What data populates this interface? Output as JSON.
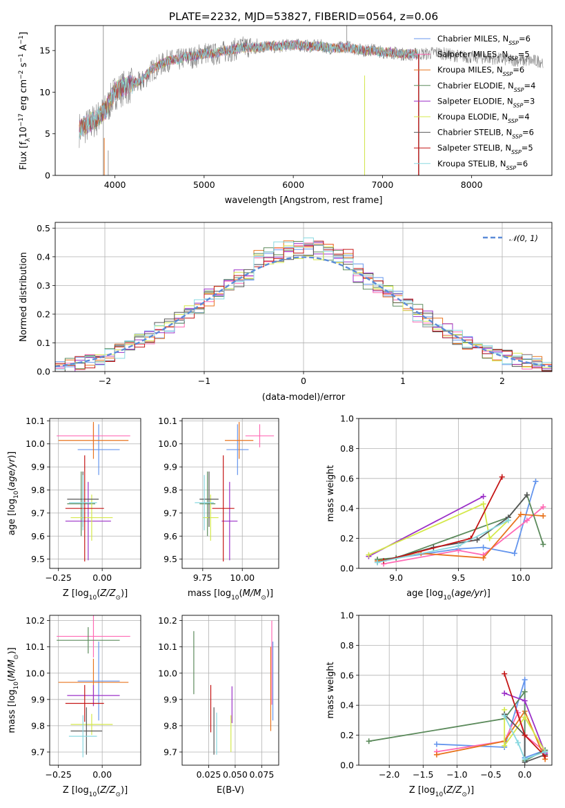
{
  "figure_title": "PLATE=2232, MJD=53827, FIBERID=0564, z=0.06",
  "models": [
    {
      "name": "Chabrier MILES",
      "nssp": "6",
      "color": "#6495ed"
    },
    {
      "name": "Salpeter MILES",
      "nssp": "5",
      "color": "#ff69b4"
    },
    {
      "name": "Kroupa MILES",
      "nssp": "6",
      "color": "#e8731c"
    },
    {
      "name": "Chabrier ELODIE",
      "nssp": "4",
      "color": "#5b8a5b"
    },
    {
      "name": "Salpeter ELODIE",
      "nssp": "3",
      "color": "#9b30c8"
    },
    {
      "name": "Kroupa ELODIE",
      "nssp": "4",
      "color": "#d4e84a"
    },
    {
      "name": "Chabrier STELIB",
      "nssp": "6",
      "color": "#555555"
    },
    {
      "name": "Salpeter STELIB",
      "nssp": "5",
      "color": "#c41414"
    },
    {
      "name": "Kroupa STELIB",
      "nssp": "6",
      "color": "#88d8e0"
    }
  ],
  "legend_suffix": "N",
  "legend_sub": "SSP",
  "data_color": "#808080",
  "chart_data": [
    {
      "id": "spectrum",
      "type": "line",
      "xlabel": "wavelength [Angstrom, rest frame]",
      "ylabel": "Flux [f_λ 10^-17 erg cm^-2 s^-1 A^-1]",
      "xlim": [
        3330,
        8900
      ],
      "ylim": [
        0,
        18
      ],
      "xticks": [
        4000,
        5000,
        6000,
        7000,
        8000
      ],
      "yticks": [
        0,
        5,
        10,
        15
      ],
      "data_wavelength": [
        3600,
        3700,
        3800,
        3900,
        4000,
        4100,
        4200,
        4300,
        4400,
        4500,
        4600,
        4700,
        4800,
        4900,
        5000,
        5100,
        5200,
        5300,
        5400,
        5500,
        5600,
        5700,
        5800,
        5900,
        6000,
        6100,
        6200,
        6300,
        6400,
        6500,
        6600,
        6700,
        6800,
        6900,
        7000,
        7100,
        7200,
        7300,
        7400,
        7500,
        7600,
        7700,
        7800,
        8000,
        8200,
        8400,
        8600,
        8800
      ],
      "data_flux": [
        5.5,
        6.0,
        6.8,
        7.8,
        10.0,
        10.5,
        10.8,
        11.2,
        12.5,
        13.2,
        13.8,
        13.8,
        14.2,
        14.2,
        14.8,
        14.5,
        14.8,
        15.0,
        15.3,
        15.5,
        15.2,
        15.6,
        15.4,
        15.6,
        15.7,
        15.6,
        15.5,
        15.6,
        15.3,
        15.3,
        15.5,
        15.2,
        15.0,
        15.1,
        14.8,
        14.8,
        14.6,
        14.5,
        14.6,
        14.6,
        14.8,
        14.6,
        14.4,
        14.2,
        14.1,
        13.9,
        13.8,
        13.7
      ],
      "model_wavelength": [
        3600,
        3700,
        3800,
        3900,
        4000,
        4100,
        4200,
        4300,
        4400,
        4500,
        4600,
        4700,
        4800,
        4900,
        5000,
        5100,
        5200,
        5300,
        5400,
        5500,
        5600,
        5700,
        5800,
        5900,
        6000,
        6100,
        6200,
        6300,
        6400,
        6500,
        6600,
        6700,
        6800,
        6900,
        7000,
        7100,
        7200,
        7300,
        7400
      ],
      "model_flux": [
        5.6,
        6.2,
        6.9,
        8.0,
        10.2,
        10.6,
        11.0,
        11.5,
        12.6,
        13.3,
        13.8,
        13.9,
        14.3,
        14.3,
        14.7,
        14.6,
        14.9,
        15.1,
        15.3,
        15.4,
        15.3,
        15.6,
        15.5,
        15.6,
        15.7,
        15.6,
        15.5,
        15.5,
        15.3,
        15.3,
        15.4,
        15.2,
        15.0,
        15.0,
        14.8,
        14.8,
        14.6,
        14.6,
        14.6
      ]
    },
    {
      "id": "residuals",
      "type": "line",
      "xlabel": "(data-model)/error",
      "ylabel": "Normed distribution",
      "xlim": [
        -2.5,
        2.5
      ],
      "ylim": [
        0,
        0.52
      ],
      "xticks": [
        -2,
        -1,
        0,
        1,
        2
      ],
      "yticks": [
        0.0,
        0.1,
        0.2,
        0.3,
        0.4,
        0.5
      ],
      "legend": "𝒩(0, 1)",
      "gauss_color": "#5b8bd8"
    },
    {
      "id": "age-vs-Z",
      "type": "scatter",
      "xlabel": "Z [log10(Z/Z⊙)]",
      "ylabel": "age  [log10(age/yr)]",
      "xlim": [
        -0.3,
        0.22
      ],
      "ylim": [
        9.46,
        10.11
      ],
      "xticks": [
        -0.25,
        0.0
      ],
      "yticks": [
        9.5,
        9.6,
        9.7,
        9.8,
        9.9,
        10.0,
        10.1
      ],
      "points": [
        {
          "x": -0.02,
          "xerr": 0.12,
          "y": 9.975,
          "yerr": 0.11
        },
        {
          "x": -0.05,
          "xerr": 0.21,
          "y": 10.035,
          "yerr": 0.05
        },
        {
          "x": -0.05,
          "xerr": 0.2,
          "y": 10.015,
          "yerr": 0.08
        },
        {
          "x": -0.12,
          "xerr": 0.08,
          "y": 9.74,
          "yerr": 0.14
        },
        {
          "x": -0.08,
          "xerr": 0.13,
          "y": 9.665,
          "yerr": 0.17
        },
        {
          "x": -0.06,
          "xerr": 0.12,
          "y": 9.68,
          "yerr": 0.1
        },
        {
          "x": -0.11,
          "xerr": 0.09,
          "y": 9.76,
          "yerr": 0.12
        },
        {
          "x": -0.1,
          "xerr": 0.11,
          "y": 9.72,
          "yerr": 0.23
        },
        {
          "x": -0.11,
          "xerr": 0.08,
          "y": 9.745,
          "yerr": 0.12
        }
      ]
    },
    {
      "id": "age-vs-mass",
      "type": "scatter",
      "xlabel": "mass [log10(M/M⊙)]",
      "ylabel": "",
      "xlim": [
        9.62,
        10.23
      ],
      "ylim": [
        9.46,
        10.11
      ],
      "xticks": [
        9.75,
        10.0
      ],
      "yticks": [
        9.5,
        9.6,
        9.7,
        9.8,
        9.9,
        10.0,
        10.1
      ],
      "points": [
        {
          "x": 9.97,
          "xerr": 0.07,
          "y": 9.975,
          "yerr": 0.11
        },
        {
          "x": 10.11,
          "xerr": 0.09,
          "y": 10.035,
          "yerr": 0.05
        },
        {
          "x": 9.98,
          "xerr": 0.09,
          "y": 10.015,
          "yerr": 0.08
        },
        {
          "x": 9.78,
          "xerr": 0.05,
          "y": 9.74,
          "yerr": 0.14
        },
        {
          "x": 9.92,
          "xerr": 0.05,
          "y": 9.665,
          "yerr": 0.17
        },
        {
          "x": 9.8,
          "xerr": 0.05,
          "y": 9.68,
          "yerr": 0.1
        },
        {
          "x": 9.79,
          "xerr": 0.06,
          "y": 9.76,
          "yerr": 0.12
        },
        {
          "x": 9.88,
          "xerr": 0.07,
          "y": 9.72,
          "yerr": 0.23
        },
        {
          "x": 9.76,
          "xerr": 0.06,
          "y": 9.745,
          "yerr": 0.12
        }
      ]
    },
    {
      "id": "weight-vs-age",
      "type": "line",
      "xlabel": "age  [log10(age/yr)]",
      "ylabel": "mass weight",
      "xlim": [
        8.7,
        10.25
      ],
      "ylim": [
        0,
        1.0
      ],
      "xticks": [
        9.0,
        9.5,
        10.0
      ],
      "yticks": [
        0.0,
        0.2,
        0.4,
        0.6,
        0.8,
        1.0
      ],
      "series": [
        {
          "x": [
            8.85,
            9.5,
            9.7,
            9.95,
            10.12
          ],
          "y": [
            0.05,
            0.13,
            0.14,
            0.1,
            0.58
          ]
        },
        {
          "x": [
            8.9,
            9.5,
            9.7,
            10.05,
            10.18
          ],
          "y": [
            0.03,
            0.12,
            0.09,
            0.32,
            0.41
          ]
        },
        {
          "x": [
            8.85,
            9.2,
            9.7,
            10.0,
            10.18
          ],
          "y": [
            0.05,
            0.1,
            0.07,
            0.36,
            0.35
          ]
        },
        {
          "x": [
            8.85,
            9.0,
            9.9,
            10.05,
            10.18
          ],
          "y": [
            0.06,
            0.07,
            0.34,
            0.49,
            0.16
          ]
        },
        {
          "x": [
            8.78,
            9.7
          ],
          "y": [
            0.08,
            0.48
          ]
        },
        {
          "x": [
            8.78,
            9.7,
            9.75,
            9.9
          ],
          "y": [
            0.09,
            0.43,
            0.2,
            0.32
          ]
        },
        {
          "x": [
            8.85,
            9.3,
            9.65,
            9.9,
            10.05
          ],
          "y": [
            0.04,
            0.14,
            0.19,
            0.34,
            0.49
          ]
        },
        {
          "x": [
            8.9,
            9.6,
            9.85
          ],
          "y": [
            0.05,
            0.2,
            0.61
          ]
        },
        {
          "x": [
            8.85,
            9.5,
            9.9
          ],
          "y": [
            0.04,
            0.15,
            0.32
          ]
        }
      ]
    },
    {
      "id": "mass-vs-Z",
      "type": "scatter",
      "xlabel": "Z [log10(Z/Z⊙)]",
      "ylabel": "mass [log10(M/M⊙)]",
      "xlim": [
        -0.3,
        0.22
      ],
      "ylim": [
        9.65,
        10.22
      ],
      "xticks": [
        -0.25,
        0.0
      ],
      "yticks": [
        9.7,
        9.8,
        9.9,
        10.0,
        10.1,
        10.2
      ],
      "points": [
        {
          "x": -0.02,
          "xerr": 0.12,
          "y": 9.97,
          "yerr": 0.15
        },
        {
          "x": -0.05,
          "xerr": 0.21,
          "y": 10.14,
          "yerr": 0.08
        },
        {
          "x": -0.05,
          "xerr": 0.2,
          "y": 9.965,
          "yerr": 0.09
        },
        {
          "x": -0.08,
          "xerr": 0.18,
          "y": 10.125,
          "yerr": 0.05
        },
        {
          "x": -0.05,
          "xerr": 0.15,
          "y": 9.915,
          "yerr": 0.04
        },
        {
          "x": -0.06,
          "xerr": 0.12,
          "y": 9.805,
          "yerr": 0.04
        },
        {
          "x": -0.09,
          "xerr": 0.09,
          "y": 9.78,
          "yerr": 0.09
        },
        {
          "x": -0.1,
          "xerr": 0.11,
          "y": 9.885,
          "yerr": 0.07
        },
        {
          "x": -0.11,
          "xerr": 0.08,
          "y": 9.76,
          "yerr": 0.08
        }
      ]
    },
    {
      "id": "mass-vs-EBV",
      "type": "scatter",
      "xlabel": "E(B-V)",
      "ylabel": "",
      "xlim": [
        0.0,
        0.091
      ],
      "ylim": [
        9.65,
        10.22
      ],
      "xticks": [
        0.025,
        0.05,
        0.075
      ],
      "yticks": [
        9.7,
        9.8,
        9.9,
        10.0,
        10.1,
        10.2
      ],
      "points": [
        {
          "x": 0.0855,
          "xerr": 0.0,
          "y": 9.97,
          "yerr": 0.15
        },
        {
          "x": 0.0845,
          "xerr": 0.0,
          "y": 10.04,
          "yerr": 0.16
        },
        {
          "x": 0.0835,
          "xerr": 0.0,
          "y": 9.94,
          "yerr": 0.16
        },
        {
          "x": 0.011,
          "xerr": 0.0,
          "y": 10.04,
          "yerr": 0.12
        },
        {
          "x": 0.047,
          "xerr": 0.0,
          "y": 9.88,
          "yerr": 0.07
        },
        {
          "x": 0.046,
          "xerr": 0.0,
          "y": 9.77,
          "yerr": 0.07
        },
        {
          "x": 0.03,
          "xerr": 0.0,
          "y": 9.78,
          "yerr": 0.09
        },
        {
          "x": 0.027,
          "xerr": 0.0,
          "y": 9.865,
          "yerr": 0.09
        },
        {
          "x": 0.0325,
          "xerr": 0.0,
          "y": 9.77,
          "yerr": 0.08
        }
      ]
    },
    {
      "id": "weight-vs-Z",
      "type": "line",
      "xlabel": "Z [log10(Z/Z⊙)]",
      "ylabel": "mass weight",
      "xlim": [
        -2.45,
        0.4
      ],
      "ylim": [
        0,
        1.0
      ],
      "xticks": [
        -2.0,
        -1.5,
        -1.0,
        -0.5,
        0.0
      ],
      "yticks": [
        0.0,
        0.2,
        0.4,
        0.6,
        0.8,
        1.0
      ],
      "series": [
        {
          "x": [
            -1.3,
            -0.3,
            0.0,
            0.0,
            0.3
          ],
          "y": [
            0.14,
            0.12,
            0.57,
            0.05,
            0.1
          ]
        },
        {
          "x": [
            -1.3,
            -0.3,
            -0.1,
            0.0,
            0.3
          ],
          "y": [
            0.09,
            0.16,
            0.35,
            0.2,
            0.09
          ]
        },
        {
          "x": [
            -1.3,
            -0.3,
            0.0,
            0.3
          ],
          "y": [
            0.07,
            0.16,
            0.36,
            0.04
          ]
        },
        {
          "x": [
            -2.3,
            -0.3,
            0.0,
            0.0,
            0.3
          ],
          "y": [
            0.16,
            0.31,
            0.49,
            0.03,
            0.1
          ]
        },
        {
          "x": [
            -0.3,
            0.0,
            0.3
          ],
          "y": [
            0.48,
            0.43,
            0.08
          ]
        },
        {
          "x": [
            -0.3,
            -0.3,
            0.0,
            0.3
          ],
          "y": [
            0.37,
            0.13,
            0.32,
            0.09
          ]
        },
        {
          "x": [
            -0.3,
            0.0,
            0.0,
            0.3
          ],
          "y": [
            0.34,
            0.2,
            0.02,
            0.07
          ]
        },
        {
          "x": [
            -0.3,
            0.0,
            0.3
          ],
          "y": [
            0.61,
            0.2,
            0.06
          ]
        },
        {
          "x": [
            -0.3,
            -0.1,
            0.0,
            0.3
          ],
          "y": [
            0.33,
            0.15,
            0.04,
            0.09
          ]
        }
      ]
    }
  ]
}
